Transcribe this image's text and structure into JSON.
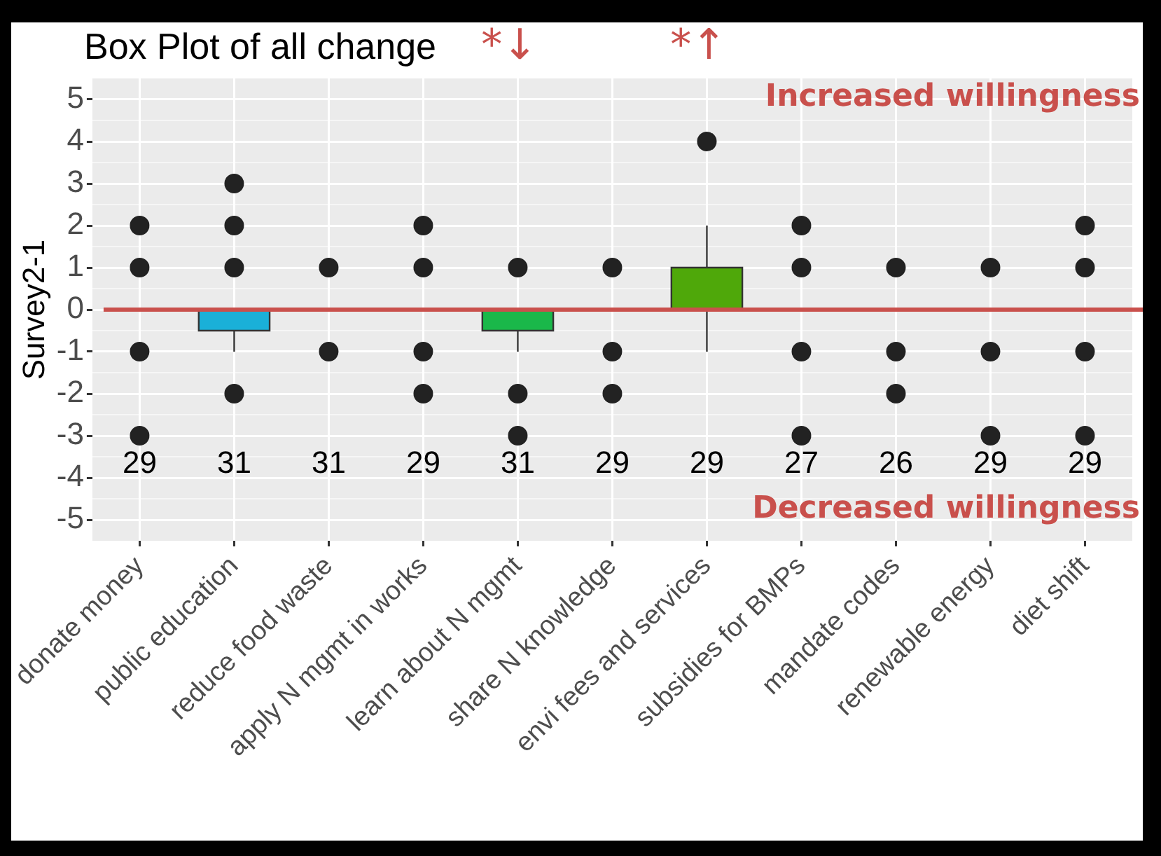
{
  "chart_data": {
    "type": "box",
    "title": "Box Plot of all change",
    "ylabel": "Survey2-1",
    "categories": [
      "donate money",
      "public education",
      "reduce food waste",
      "apply N mgmt in works",
      "learn about N mgmt",
      "share N knowledge",
      "envi fees and services",
      "subsidies for BMPs",
      "mandate codes",
      "renewable energy",
      "diet shift"
    ],
    "colors": [
      "#333333",
      "#1ab0d8",
      "#333333",
      "#333333",
      "#1ab84a",
      "#333333",
      "#4fa80a",
      "#333333",
      "#333333",
      "#333333",
      "#333333"
    ],
    "boxes": [
      {
        "low": 0,
        "q1": 0,
        "median": 0,
        "q3": 0,
        "high": 0,
        "outliers": [
          2,
          1,
          -1,
          -3
        ]
      },
      {
        "low": -1,
        "q1": -0.5,
        "median": 0,
        "q3": 0,
        "high": 0,
        "outliers": [
          3,
          2,
          1,
          -2
        ]
      },
      {
        "low": 0,
        "q1": 0,
        "median": 0,
        "q3": 0,
        "high": 0,
        "outliers": [
          1,
          -1
        ]
      },
      {
        "low": 0,
        "q1": 0,
        "median": 0,
        "q3": 0,
        "high": 0,
        "outliers": [
          2,
          1,
          -1,
          -2
        ]
      },
      {
        "low": -1,
        "q1": -0.5,
        "median": 0,
        "q3": 0,
        "high": 0,
        "outliers": [
          1,
          -2,
          -3
        ]
      },
      {
        "low": 0,
        "q1": 0,
        "median": 0,
        "q3": 0,
        "high": 0,
        "outliers": [
          1,
          -1,
          -2
        ]
      },
      {
        "low": -1,
        "q1": 0,
        "median": 0,
        "q3": 1,
        "high": 2,
        "outliers": [
          4
        ]
      },
      {
        "low": 0,
        "q1": 0,
        "median": 0,
        "q3": 0,
        "high": 0,
        "outliers": [
          2,
          1,
          -1,
          -3
        ]
      },
      {
        "low": 0,
        "q1": 0,
        "median": 0,
        "q3": 0,
        "high": 0,
        "outliers": [
          1,
          -1,
          -2
        ]
      },
      {
        "low": 0,
        "q1": 0,
        "median": 0,
        "q3": 0,
        "high": 0,
        "outliers": [
          1,
          -1,
          -3
        ]
      },
      {
        "low": 0,
        "q1": 0,
        "median": 0,
        "q3": 0,
        "high": 0,
        "outliers": [
          2,
          1,
          -1,
          -3
        ]
      }
    ],
    "ylim": [
      -5.5,
      5.5
    ],
    "yticks": [
      -5,
      -4,
      -3,
      -2,
      -1,
      0,
      1,
      2,
      3,
      4,
      5
    ],
    "grid": true,
    "legend": false,
    "ref_lines": [
      {
        "axis": "y",
        "value": 0,
        "color": "#c9504c"
      }
    ],
    "annotations": [
      "Increased willingness",
      "Decreased willingness",
      "*↓",
      "*↑",
      "29",
      "31",
      "31",
      "29",
      "31",
      "29",
      "29",
      "27",
      "26",
      "29",
      "29"
    ]
  }
}
